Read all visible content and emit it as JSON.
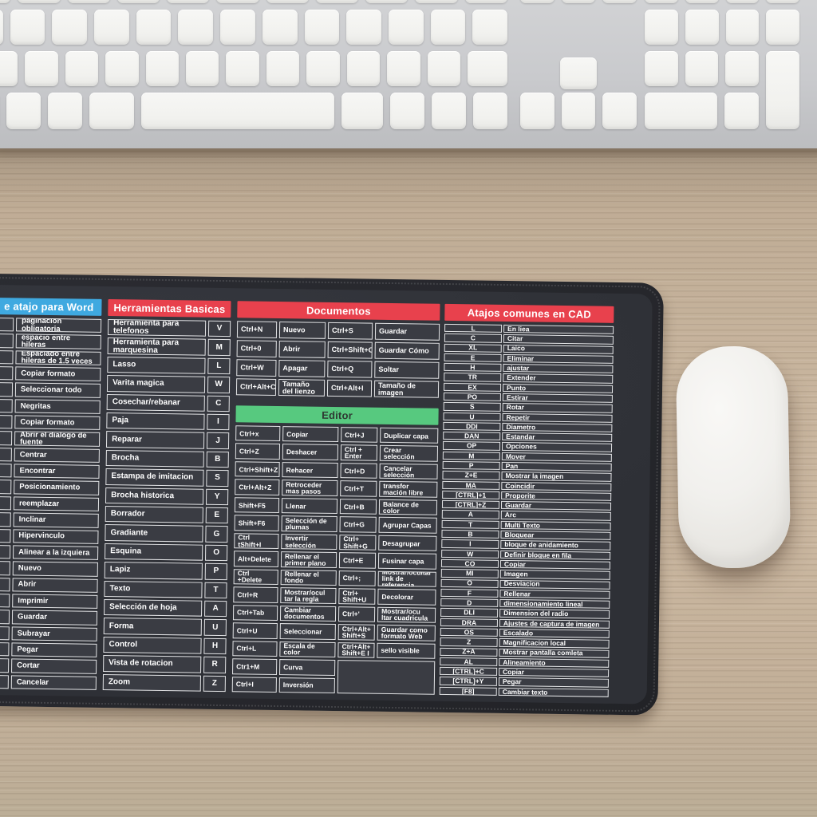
{
  "colors": {
    "wood_desk": "#c2af98",
    "pad_rim": "#26272c",
    "pad_surface": "#32343a",
    "cell_background": "#3a3c43",
    "cell_border": "#e2e3e5",
    "header_blue": "#3fa9e0",
    "header_red": "#e8414d",
    "header_green": "#57c97f",
    "text_white": "#ffffff",
    "keyboard_body": "#c9cacd",
    "keyboard_key": "#f4f4f2",
    "mouse_white": "#f0efec"
  },
  "mousepad": {
    "word": {
      "header": "e atajo para Word",
      "rows": [
        "paginación obligatoria",
        "espacio entre hileras",
        "Espaciado entre hileras de 1.5 veces",
        "Copiar formato",
        "Seleccionar todo",
        "Negritas",
        "Copiar formato",
        "Abrir el dialogo de fuente",
        "Centrar",
        "Encontrar",
        "Posicionamiento",
        "reemplazar",
        "Inclinar",
        "Hipervinculo",
        "Alinear a la izquiera",
        "Nuevo",
        "Abrir",
        "Imprimir",
        "Guardar",
        "Subrayar",
        "Pegar",
        "Cortar",
        "Cancelar"
      ]
    },
    "tools": {
      "header": "Herramientas Basicas",
      "rows": [
        [
          "Herramienta para telefonos",
          "V"
        ],
        [
          "Herramienta para marquesina",
          "M"
        ],
        [
          "Lasso",
          "L"
        ],
        [
          "Varita magica",
          "W"
        ],
        [
          "Cosechar/rebanar",
          "C"
        ],
        [
          "Paja",
          "I"
        ],
        [
          "Reparar",
          "J"
        ],
        [
          "Brocha",
          "B"
        ],
        [
          "Estampa de imitacion",
          "S"
        ],
        [
          "Brocha historica",
          "Y"
        ],
        [
          "Borrador",
          "E"
        ],
        [
          "Gradiante",
          "G"
        ],
        [
          "Esquina",
          "O"
        ],
        [
          "Lapiz",
          "P"
        ],
        [
          "Texto",
          "T"
        ],
        [
          "Selección de hoja",
          "A"
        ],
        [
          "Forma",
          "U"
        ],
        [
          "Control",
          "H"
        ],
        [
          "Vista de rotacion",
          "R"
        ],
        [
          "Zoom",
          "Z"
        ]
      ]
    },
    "documentos": {
      "header": "Documentos",
      "rows": [
        [
          "Ctrl+N",
          "Nuevo",
          "Ctrl+S",
          "Guardar"
        ],
        [
          "Ctrl+0",
          "Abrir",
          "Ctrl+Shift+C",
          "Guardar Cómo"
        ],
        [
          "Ctrl+W",
          "Apagar",
          "Ctrl+Q",
          "Soltar"
        ],
        [
          "Ctrl+Alt+C",
          "Tamaño del lienzo",
          "Ctrl+Alt+I",
          "Tamaño de imagen"
        ]
      ]
    },
    "editor": {
      "header": "Editor",
      "rows": [
        [
          "Ctrl+x",
          "Copiar",
          "Ctrl+J",
          "Duplicar capa"
        ],
        [
          "Ctrl+Z",
          "Deshacer",
          "Ctrl + Enter",
          "Crear selección"
        ],
        [
          "Ctrl+Shift+Z",
          "Rehacer",
          "Ctrl+D",
          "Cancelar selección"
        ],
        [
          "Ctrl+Alt+Z",
          "Retroceder mas pasos",
          "Ctrl+T",
          "transfor mación libre"
        ],
        [
          "Shift+F5",
          "Llenar",
          "Ctrl+B",
          "Balance de color"
        ],
        [
          "Shift+F6",
          "Selección de plumas",
          "Ctrl+G",
          "Agrupar Capas"
        ],
        [
          "Ctrl tShift+I",
          "Invertir selección",
          "Ctrl+ Shift+G",
          "Desagrupar"
        ],
        [
          "Alt+Delete",
          "Rellenar el primer plano",
          "Ctrl+E",
          "Fusinar capa"
        ],
        [
          "Ctrl +Delete",
          "Rellenar el fondo",
          "Ctrl+;",
          "Mostrar/ocultar link de referencia"
        ],
        [
          "Ctrl+R",
          "Mostrar/ocul tar la regla",
          "Ctrl+ Shift+U",
          "Decolorar"
        ],
        [
          "Ctrl+Tab",
          "Cambiar documentos",
          "Ctrl+'",
          "Mostrar/ocu ltar cuadricula"
        ],
        [
          "Ctrl+U",
          "Seleccionar",
          "Ctrl+Alt+ Shift+S",
          "Guardar como formato Web"
        ],
        [
          "Ctrl+L",
          "Escala de color",
          "Ctrl+Alt+ Shift+E I",
          "sello visible"
        ],
        [
          "Ctr1+M",
          "Curva"
        ],
        [
          "Ctrl+I",
          "Inversión"
        ]
      ]
    },
    "cad": {
      "header": "Atajos comunes en CAD",
      "rows": [
        [
          "L",
          "En liea"
        ],
        [
          "C",
          "Citar"
        ],
        [
          "XL",
          "Laico"
        ],
        [
          "E",
          "Eliminar"
        ],
        [
          "H",
          "ajustar"
        ],
        [
          "TR",
          "Extender"
        ],
        [
          "EX",
          "Punto"
        ],
        [
          "PO",
          "Estirar"
        ],
        [
          "S",
          "Rotar"
        ],
        [
          "U",
          "Repetir"
        ],
        [
          "DDI",
          "Diametro"
        ],
        [
          "DAN",
          "Estandar"
        ],
        [
          "OP",
          "Opciones"
        ],
        [
          "M",
          "Mover"
        ],
        [
          "P",
          "Pan"
        ],
        [
          "Z+E",
          "Mostrar la imagen"
        ],
        [
          "MA",
          "Coincidir"
        ],
        [
          "[CTRL]+1",
          "Proporite"
        ],
        [
          "[CTRL]+Z",
          "Guardar"
        ],
        [
          "A",
          "Arc"
        ],
        [
          "T",
          "Multi Texto"
        ],
        [
          "B",
          "Bloquear"
        ],
        [
          "I",
          "bloque de anidamiento"
        ],
        [
          "W",
          "Definir bloque en fila"
        ],
        [
          "CO",
          "Copiar"
        ],
        [
          "MI",
          "Imagen"
        ],
        [
          "O",
          "Desviacion"
        ],
        [
          "F",
          "Rellenar"
        ],
        [
          "D",
          "dimensionamiento lineal"
        ],
        [
          "DLI",
          "Dimension del radio"
        ],
        [
          "DRA",
          "Ajustes de captura de imagen"
        ],
        [
          "OS",
          "Escalado"
        ],
        [
          "Z",
          "Magnificacion local"
        ],
        [
          "Z+A",
          "Mostrar pantalla comleta"
        ],
        [
          "AL",
          "Alineamiento"
        ],
        [
          "[CTRL]+C",
          "Copiar"
        ],
        [
          "[CTRL]+Y",
          "Pegar"
        ],
        [
          "[F8]",
          "Cambiar texto"
        ]
      ]
    }
  }
}
